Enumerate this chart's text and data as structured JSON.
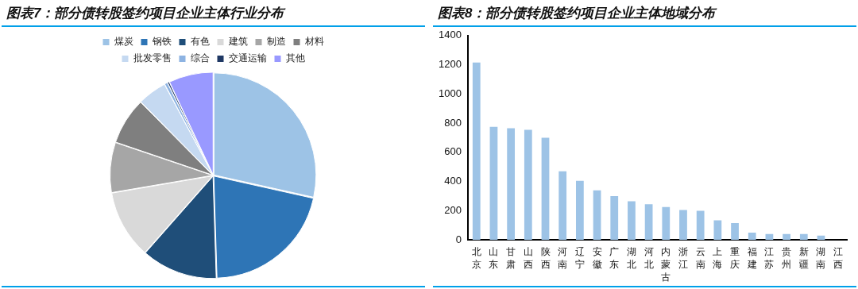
{
  "chart_data": [
    {
      "type": "pie",
      "title": "图表7：部分债转股签约项目企业主体行业分布",
      "categories": [
        "煤炭",
        "钢铁",
        "有色",
        "建筑",
        "制造",
        "材料",
        "批发零售",
        "综合",
        "交通运输",
        "其他"
      ],
      "values": [
        28.5,
        21,
        12,
        10.8,
        7.9,
        7.4,
        4.6,
        0.5,
        0.3,
        7.0
      ],
      "colors": [
        "#9dc3e6",
        "#2e75b6",
        "#1f4e79",
        "#d9d9d9",
        "#a6a6a6",
        "#7f7f7f",
        "#c5d9f1",
        "#8db3e2",
        "#1f3864",
        "#9999ff"
      ],
      "legend": "top"
    },
    {
      "type": "bar",
      "title": "图表8：部分债转股签约项目企业主体地域分布",
      "categories": [
        "北京",
        "山东",
        "甘肃",
        "山西",
        "陕西",
        "河南",
        "辽宁",
        "安徽",
        "广东",
        "湖北",
        "河北",
        "内蒙古",
        "浙江",
        "云南",
        "上海",
        "重庆",
        "福建",
        "江苏",
        "贵州",
        "新疆",
        "湖南",
        "江西"
      ],
      "values": [
        1215,
        775,
        765,
        755,
        700,
        470,
        405,
        340,
        300,
        265,
        245,
        225,
        205,
        200,
        135,
        115,
        50,
        40,
        40,
        40,
        30,
        0
      ],
      "color": "#9dc3e6",
      "ylim": [
        0,
        1400
      ],
      "yticks": [
        0,
        200,
        400,
        600,
        800,
        1000,
        1200,
        1400
      ],
      "grid": false,
      "legend": false
    }
  ]
}
